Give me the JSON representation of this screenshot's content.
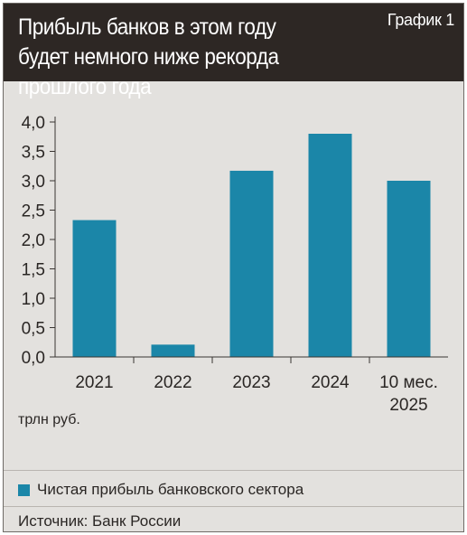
{
  "header": {
    "title_line1": "Прибыль банков в этом году",
    "title_line2": "будет немного ниже рекорда прошлого года",
    "chart_number": "График 1"
  },
  "unit_label": "трлн руб.",
  "legend_label": "Чистая прибыль банковского сектора",
  "source": "Источник: Банк России",
  "colors": {
    "bar": "#1b86a8",
    "header_bg": "#2d2724",
    "panel_bg": "#e3e1de"
  },
  "chart_data": {
    "type": "bar",
    "title": "Прибыль банков в этом году будет немного ниже рекорда прошлого года",
    "ylabel": "трлн руб.",
    "categories": [
      [
        "2021"
      ],
      [
        "2022"
      ],
      [
        "2023"
      ],
      [
        "2024"
      ],
      [
        "10 мес.",
        "2025"
      ]
    ],
    "series": [
      {
        "name": "Чистая прибыль банковского сектора",
        "values": [
          2.33,
          0.21,
          3.17,
          3.8,
          3.0
        ]
      }
    ],
    "yticks": [
      "0,0",
      "0,5",
      "1,0",
      "1,5",
      "2,0",
      "2,5",
      "3,0",
      "3,5",
      "4,0"
    ],
    "ylim": [
      0,
      4
    ],
    "grid": false,
    "legend": "bottom"
  }
}
